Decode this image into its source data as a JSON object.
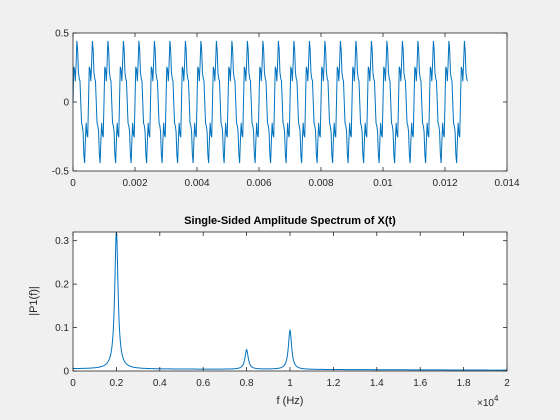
{
  "colors": {
    "line": "#0072bd",
    "axes": "#262626",
    "plot_bg": "#ffffff",
    "figure_bg": "#f0f0f0"
  },
  "chart_data": [
    {
      "type": "line",
      "title": "",
      "xlabel": "",
      "ylabel": "",
      "xlim": [
        0,
        0.014
      ],
      "ylim": [
        -0.5,
        0.5
      ],
      "xticks": [
        0,
        0.002,
        0.004,
        0.006,
        0.008,
        0.01,
        0.012,
        0.014
      ],
      "xtick_labels": [
        "0",
        "0.002",
        "0.004",
        "0.006",
        "0.008",
        "0.01",
        "0.012",
        "0.014"
      ],
      "yticks": [
        -0.5,
        0,
        0.5
      ],
      "ytick_labels": [
        "-0.5",
        "0",
        "0.5"
      ],
      "signal": {
        "components": [
          {
            "freq_hz": 2000,
            "amplitude": 0.32
          },
          {
            "freq_hz": 8000,
            "amplitude": 0.05
          },
          {
            "freq_hz": 10000,
            "amplitude": 0.09
          }
        ],
        "t_start": 0,
        "t_end": 0.01275,
        "sample_rate_hz": 40000
      },
      "grid": false
    },
    {
      "type": "line",
      "title": "Single-Sided Amplitude Spectrum of X(t)",
      "xlabel": "f (Hz)",
      "ylabel": "|P1(f)|",
      "xlim": [
        0,
        20000
      ],
      "ylim": [
        0,
        0.32
      ],
      "xticks": [
        0,
        2000,
        4000,
        6000,
        8000,
        10000,
        12000,
        14000,
        16000,
        18000,
        20000
      ],
      "xtick_labels": [
        "0",
        "0.2",
        "0.4",
        "0.6",
        "0.8",
        "1",
        "1.2",
        "1.4",
        "1.6",
        "1.8",
        "2"
      ],
      "x_exponent_label": "×10",
      "x_exponent_power": "4",
      "yticks": [
        0,
        0.1,
        0.2,
        0.3
      ],
      "ytick_labels": [
        "0",
        "0.1",
        "0.2",
        "0.3"
      ],
      "peaks": [
        {
          "freq_hz": 2000,
          "amplitude": 0.32
        },
        {
          "freq_hz": 8000,
          "amplitude": 0.045
        },
        {
          "freq_hz": 10000,
          "amplitude": 0.09
        }
      ],
      "baseline": 0.005,
      "grid": false
    }
  ]
}
